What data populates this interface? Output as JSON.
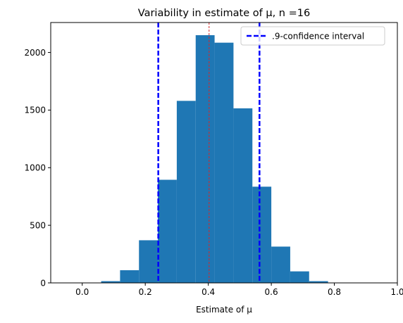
{
  "chart_data": {
    "type": "bar",
    "title": "Variability in estimate of μ, n =16",
    "xlabel": "Estimate of μ",
    "ylabel": "",
    "xlim": [
      -0.1,
      1.0
    ],
    "ylim": [
      0,
      2260
    ],
    "x_ticks": [
      0.0,
      0.2,
      0.4,
      0.6,
      0.8,
      1.0
    ],
    "x_tick_labels": [
      "0.0",
      "0.2",
      "0.4",
      "0.6",
      "0.8",
      "1.0"
    ],
    "y_ticks": [
      0,
      500,
      1000,
      1500,
      2000
    ],
    "y_tick_labels": [
      "0",
      "500",
      "1000",
      "1500",
      "2000"
    ],
    "grid": false,
    "bar_color": "#1f77b4",
    "bins": [
      {
        "x0": 0.0,
        "x1": 0.06,
        "count": 3
      },
      {
        "x0": 0.06,
        "x1": 0.12,
        "count": 15
      },
      {
        "x0": 0.12,
        "x1": 0.18,
        "count": 110
      },
      {
        "x0": 0.18,
        "x1": 0.24,
        "count": 370
      },
      {
        "x0": 0.24,
        "x1": 0.3,
        "count": 895
      },
      {
        "x0": 0.3,
        "x1": 0.36,
        "count": 1580
      },
      {
        "x0": 0.36,
        "x1": 0.42,
        "count": 2150
      },
      {
        "x0": 0.42,
        "x1": 0.48,
        "count": 2085
      },
      {
        "x0": 0.48,
        "x1": 0.54,
        "count": 1515
      },
      {
        "x0": 0.54,
        "x1": 0.6,
        "count": 835
      },
      {
        "x0": 0.6,
        "x1": 0.66,
        "count": 315
      },
      {
        "x0": 0.66,
        "x1": 0.72,
        "count": 100
      },
      {
        "x0": 0.72,
        "x1": 0.78,
        "count": 15
      },
      {
        "x0": 0.78,
        "x1": 0.84,
        "count": 3
      }
    ],
    "vlines": [
      {
        "x": 0.2413,
        "color": "#0000ff",
        "style": "dashed",
        "role": "ci-lower"
      },
      {
        "x": 0.5625,
        "color": "#0000ff",
        "style": "dashed",
        "role": "ci-upper"
      },
      {
        "x": 0.4025,
        "color": "#d62728",
        "style": "dashed",
        "role": "mean"
      }
    ],
    "legend": {
      "placement": "top-right",
      "entries": [
        {
          "label": ".9-confidence interval",
          "color": "#0000ff",
          "style": "dashed"
        }
      ]
    }
  }
}
